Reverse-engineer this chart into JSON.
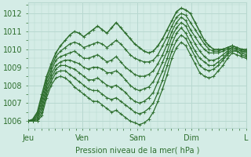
{
  "bg_color": "#d4ece6",
  "grid_color": "#b8d8d0",
  "line_color": "#2d6e2d",
  "title": "Pression niveau de la mer( hPa )",
  "ylabel_ticks": [
    1006,
    1007,
    1008,
    1009,
    1010,
    1011,
    1012
  ],
  "xlabels": [
    "Jeu",
    "Ven",
    "Sam",
    "Dim",
    "L"
  ],
  "ylim": [
    1005.6,
    1012.6
  ],
  "xlim": [
    0,
    96
  ],
  "day_positions": [
    0,
    24,
    48,
    72,
    96
  ],
  "series": [
    [
      1006.0,
      1006.1,
      1006.5,
      1007.5,
      1008.5,
      1009.2,
      1009.8,
      1010.2,
      1010.5,
      1010.8,
      1011.0,
      1010.9,
      1010.7,
      1010.9,
      1011.1,
      1011.3,
      1011.1,
      1010.9,
      1011.2,
      1011.5,
      1011.2,
      1010.9,
      1010.6,
      1010.3,
      1010.1,
      1009.9,
      1009.8,
      1009.9,
      1010.2,
      1010.6,
      1011.1,
      1011.6,
      1012.1,
      1012.3,
      1012.2,
      1012.0,
      1011.5,
      1011.0,
      1010.5,
      1010.2,
      1010.0,
      1010.0,
      1010.0,
      1010.1,
      1010.2,
      1010.1,
      1010.0,
      1010.0
    ],
    [
      1006.0,
      1006.05,
      1006.4,
      1007.3,
      1008.3,
      1009.0,
      1009.6,
      1009.9,
      1010.1,
      1010.3,
      1010.4,
      1010.3,
      1010.1,
      1010.2,
      1010.3,
      1010.4,
      1010.3,
      1010.1,
      1010.3,
      1010.5,
      1010.3,
      1010.0,
      1009.7,
      1009.5,
      1009.4,
      1009.3,
      1009.3,
      1009.4,
      1009.7,
      1010.2,
      1010.7,
      1011.3,
      1011.8,
      1012.0,
      1011.9,
      1011.5,
      1011.1,
      1010.7,
      1010.3,
      1010.0,
      1009.9,
      1009.9,
      1010.0,
      1010.1,
      1010.2,
      1010.1,
      1010.0,
      1009.9
    ],
    [
      1006.0,
      1006.0,
      1006.3,
      1007.1,
      1008.1,
      1008.8,
      1009.4,
      1009.6,
      1009.7,
      1009.8,
      1009.9,
      1009.7,
      1009.5,
      1009.5,
      1009.6,
      1009.7,
      1009.5,
      1009.3,
      1009.4,
      1009.6,
      1009.3,
      1009.0,
      1008.8,
      1008.6,
      1008.5,
      1008.5,
      1008.6,
      1008.8,
      1009.2,
      1009.7,
      1010.3,
      1011.0,
      1011.5,
      1011.8,
      1011.6,
      1011.1,
      1010.7,
      1010.3,
      1010.0,
      1009.8,
      1009.8,
      1009.8,
      1009.9,
      1010.0,
      1010.1,
      1010.0,
      1009.9,
      1009.9
    ],
    [
      1006.0,
      1006.0,
      1006.2,
      1006.9,
      1007.9,
      1008.6,
      1009.1,
      1009.3,
      1009.4,
      1009.4,
      1009.3,
      1009.2,
      1009.0,
      1008.9,
      1009.0,
      1009.0,
      1008.9,
      1008.7,
      1008.7,
      1008.8,
      1008.6,
      1008.3,
      1008.0,
      1007.8,
      1007.7,
      1007.8,
      1007.9,
      1008.2,
      1008.7,
      1009.3,
      1009.9,
      1010.7,
      1011.2,
      1011.5,
      1011.3,
      1010.8,
      1010.3,
      1009.9,
      1009.6,
      1009.4,
      1009.4,
      1009.5,
      1009.7,
      1009.9,
      1010.1,
      1010.0,
      1009.9,
      1009.8
    ],
    [
      1006.0,
      1006.0,
      1006.1,
      1006.7,
      1007.7,
      1008.4,
      1008.9,
      1009.1,
      1009.1,
      1009.0,
      1008.9,
      1008.7,
      1008.5,
      1008.3,
      1008.3,
      1008.4,
      1008.2,
      1008.0,
      1007.9,
      1008.0,
      1007.8,
      1007.6,
      1007.3,
      1007.1,
      1007.0,
      1007.1,
      1007.3,
      1007.6,
      1008.2,
      1008.8,
      1009.5,
      1010.3,
      1010.9,
      1011.2,
      1010.9,
      1010.4,
      1009.9,
      1009.5,
      1009.3,
      1009.1,
      1009.1,
      1009.3,
      1009.5,
      1009.8,
      1010.0,
      1009.9,
      1009.8,
      1009.7
    ],
    [
      1006.0,
      1006.0,
      1006.0,
      1006.5,
      1007.5,
      1008.2,
      1008.7,
      1008.8,
      1008.8,
      1008.6,
      1008.4,
      1008.2,
      1008.0,
      1007.8,
      1007.7,
      1007.7,
      1007.5,
      1007.3,
      1007.2,
      1007.3,
      1007.1,
      1006.9,
      1006.7,
      1006.5,
      1006.4,
      1006.5,
      1006.7,
      1007.0,
      1007.6,
      1008.3,
      1009.1,
      1009.9,
      1010.5,
      1010.8,
      1010.6,
      1010.1,
      1009.6,
      1009.1,
      1008.9,
      1008.8,
      1008.9,
      1009.1,
      1009.4,
      1009.7,
      1009.9,
      1009.9,
      1009.7,
      1009.6
    ],
    [
      1006.0,
      1006.0,
      1006.0,
      1006.3,
      1007.3,
      1008.0,
      1008.4,
      1008.5,
      1008.4,
      1008.2,
      1007.9,
      1007.7,
      1007.5,
      1007.3,
      1007.1,
      1007.1,
      1006.9,
      1006.7,
      1006.5,
      1006.6,
      1006.4,
      1006.2,
      1006.0,
      1005.9,
      1005.8,
      1005.9,
      1006.1,
      1006.5,
      1007.1,
      1007.8,
      1008.6,
      1009.5,
      1010.1,
      1010.4,
      1010.2,
      1009.7,
      1009.2,
      1008.7,
      1008.5,
      1008.4,
      1008.5,
      1008.8,
      1009.1,
      1009.5,
      1009.8,
      1009.7,
      1009.6,
      1009.5
    ]
  ]
}
